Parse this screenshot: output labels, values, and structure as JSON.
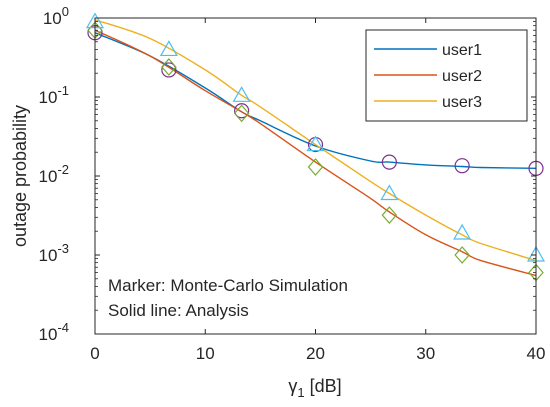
{
  "chart_data": {
    "type": "line",
    "xlabel": "γ",
    "xlabel_subscript": "1",
    "xlabel_unit": " [dB]",
    "ylabel": "outage probability",
    "xlim": [
      0,
      40
    ],
    "ylim": [
      0.0001,
      1
    ],
    "yscale": "log",
    "grid": false,
    "legend_placement": "top-right",
    "x_ticks": [
      0,
      10,
      20,
      30,
      40
    ],
    "x_tick_labels": [
      "0",
      "10",
      "20",
      "30",
      "40"
    ],
    "y_ticks": [
      {
        "value": 1,
        "base": "10",
        "exp": "0"
      },
      {
        "value": 0.1,
        "base": "10",
        "exp": "-1"
      },
      {
        "value": 0.01,
        "base": "10",
        "exp": "-2"
      },
      {
        "value": 0.001,
        "base": "10",
        "exp": "-3"
      },
      {
        "value": 0.0001,
        "base": "10",
        "exp": "-4"
      }
    ],
    "annotations": [
      "Marker: Monte-Carlo Simulation",
      "Solid line: Analysis"
    ],
    "series": [
      {
        "name": "user1",
        "color": "#0072BD",
        "marker": "circle",
        "marker_color": "#7E2F8E",
        "x": [
          0,
          5,
          10,
          13.3,
          15,
          20,
          25,
          26.7,
          30,
          33.3,
          35,
          40
        ],
        "y": [
          0.65,
          0.33,
          0.13,
          0.065,
          0.05,
          0.024,
          0.0155,
          0.015,
          0.0138,
          0.0132,
          0.0128,
          0.0125
        ],
        "markers_x": [
          0,
          6.7,
          13.3,
          20,
          26.7,
          33.3,
          40
        ],
        "markers_y": [
          0.65,
          0.22,
          0.067,
          0.025,
          0.015,
          0.0135,
          0.0125
        ]
      },
      {
        "name": "user2",
        "color": "#D95319",
        "marker": "diamond",
        "marker_color": "#77AC30",
        "x": [
          0,
          5,
          10,
          13.3,
          15,
          20,
          25,
          26.7,
          30,
          33.3,
          35,
          40
        ],
        "y": [
          0.7,
          0.33,
          0.12,
          0.065,
          0.046,
          0.015,
          0.0052,
          0.0035,
          0.0018,
          0.0011,
          0.00085,
          0.00055
        ],
        "markers_x": [
          0,
          6.7,
          13.3,
          20,
          26.7,
          33.3,
          40
        ],
        "markers_y": [
          0.7,
          0.24,
          0.062,
          0.013,
          0.0032,
          0.001,
          0.0006
        ]
      },
      {
        "name": "user3",
        "color": "#EDB120",
        "marker": "triangle",
        "marker_color": "#4DBEEE",
        "x": [
          0,
          5,
          10,
          13.3,
          15,
          20,
          25,
          26.7,
          30,
          33.3,
          35,
          40
        ],
        "y": [
          0.95,
          0.55,
          0.22,
          0.105,
          0.075,
          0.025,
          0.0085,
          0.006,
          0.0032,
          0.0018,
          0.0014,
          0.00085
        ],
        "markers_x": [
          0,
          6.7,
          13.3,
          20,
          26.7,
          33.3,
          40
        ],
        "markers_y": [
          0.9,
          0.4,
          0.105,
          0.025,
          0.006,
          0.0019,
          0.001
        ]
      }
    ]
  }
}
